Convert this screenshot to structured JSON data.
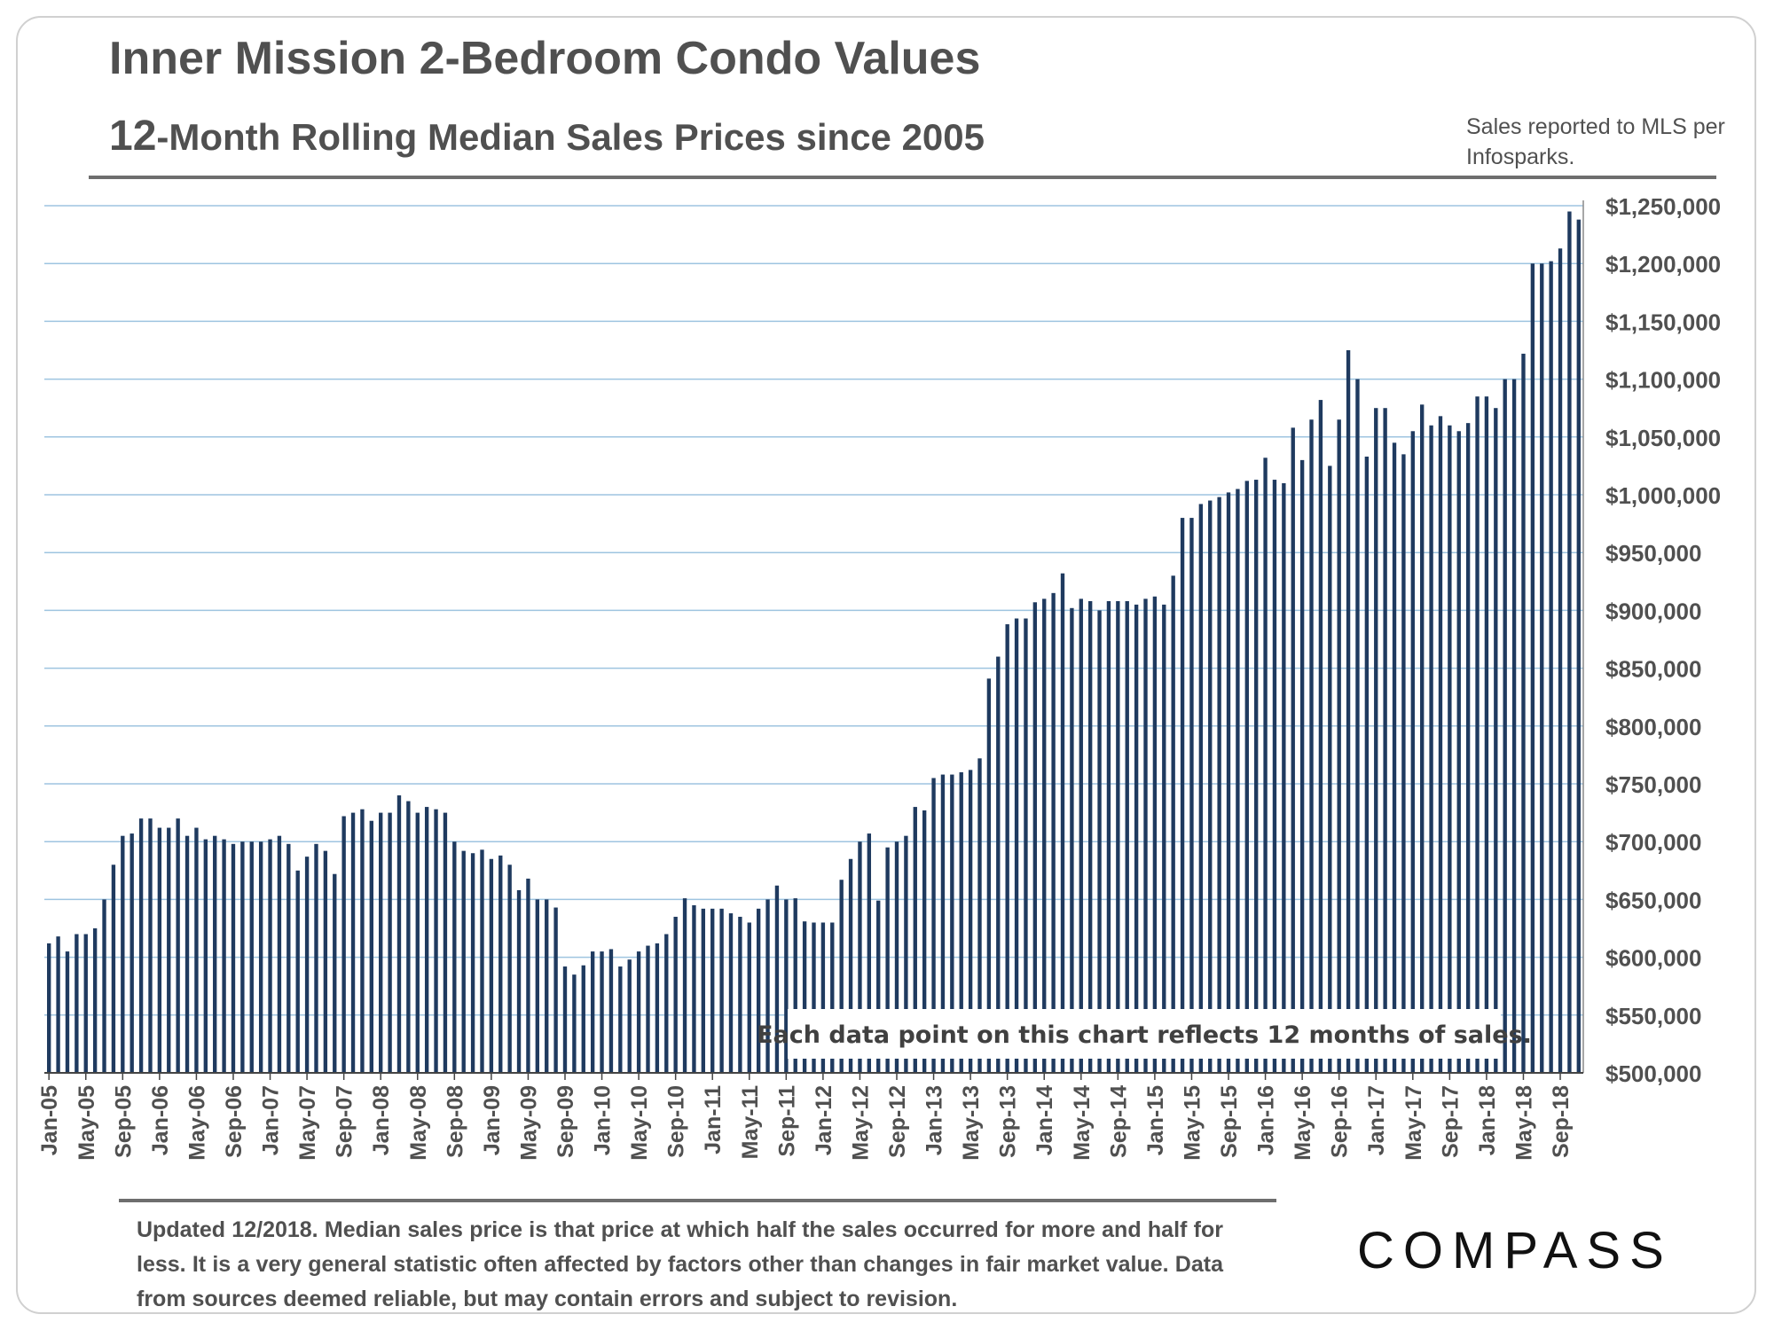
{
  "title": "Inner Mission 2-Bedroom Condo Values",
  "subtitle_number": "12",
  "subtitle_rest": "-Month Rolling Median Sales Prices since 2005",
  "source_note": "Sales reported to MLS per Infosparks.",
  "annotation": "Each data point on this chart reflects 12 months of sales.",
  "footnote": "Updated 12/2018. Median sales price is that price at which half the sales occurred for more and half for less. It is a very general statistic often affected by factors other than changes in fair market value. Data from sources deemed reliable, but may contain errors and subject to revision.",
  "logo_text": "COMPASS",
  "colors": {
    "bar": "#1f3a5f",
    "grid": "#9ec4e0",
    "text": "#505050",
    "rule": "#6e6e6e"
  },
  "chart_data": {
    "type": "bar",
    "title": "Inner Mission 2-Bedroom Condo Values",
    "subtitle": "12-Month Rolling Median Sales Prices since 2005",
    "xlabel": "",
    "ylabel": "",
    "ylim": [
      500000,
      1250000
    ],
    "y_ticks": [
      500000,
      550000,
      600000,
      650000,
      700000,
      750000,
      800000,
      850000,
      900000,
      950000,
      1000000,
      1050000,
      1100000,
      1150000,
      1200000,
      1250000
    ],
    "y_tick_labels": [
      "$500,000",
      "$550,000",
      "$600,000",
      "$650,000",
      "$700,000",
      "$750,000",
      "$800,000",
      "$850,000",
      "$900,000",
      "$950,000",
      "$1,000,000",
      "$1,050,000",
      "$1,100,000",
      "$1,150,000",
      "$1,200,000",
      "$1,250,000"
    ],
    "x_tick_labels": [
      "Jan-05",
      "May-05",
      "Sep-05",
      "Jan-06",
      "May-06",
      "Sep-06",
      "Jan-07",
      "May-07",
      "Sep-07",
      "Jan-08",
      "May-08",
      "Sep-08",
      "Jan-09",
      "May-09",
      "Sep-09",
      "Jan-10",
      "May-10",
      "Sep-10",
      "Jan-11",
      "May-11",
      "Sep-11",
      "Jan-12",
      "May-12",
      "Sep-12",
      "Jan-13",
      "May-13",
      "Sep-13",
      "Jan-14",
      "May-14",
      "Sep-14",
      "Jan-15",
      "May-15",
      "Sep-15",
      "Jan-16",
      "May-16",
      "Sep-16",
      "Jan-17",
      "May-17",
      "Sep-17",
      "Jan-18",
      "May-18",
      "Sep-18"
    ],
    "start_month": "Jan-05",
    "values": [
      612000,
      618000,
      605000,
      620000,
      620000,
      625000,
      650000,
      680000,
      705000,
      707000,
      720000,
      720000,
      712000,
      712000,
      720000,
      705000,
      712000,
      702000,
      705000,
      702000,
      698000,
      700000,
      700000,
      700000,
      702000,
      705000,
      698000,
      675000,
      687000,
      698000,
      692000,
      672000,
      722000,
      725000,
      728000,
      718000,
      725000,
      725000,
      740000,
      735000,
      725000,
      730000,
      728000,
      725000,
      700000,
      692000,
      690000,
      693000,
      685000,
      688000,
      680000,
      658000,
      668000,
      650000,
      650000,
      643000,
      592000,
      585000,
      593000,
      605000,
      605000,
      607000,
      592000,
      598000,
      605000,
      610000,
      612000,
      620000,
      635000,
      651000,
      645000,
      642000,
      642000,
      642000,
      638000,
      635000,
      630000,
      642000,
      650000,
      662000,
      650000,
      651000,
      631000,
      630000,
      630000,
      630000,
      667000,
      685000,
      700000,
      707000,
      649000,
      695000,
      700000,
      705000,
      730000,
      727000,
      755000,
      758000,
      758000,
      760000,
      762000,
      772000,
      841000,
      860000,
      888000,
      893000,
      893000,
      907000,
      910000,
      915000,
      932000,
      902000,
      910000,
      908000,
      900000,
      908000,
      908000,
      908000,
      905000,
      910000,
      912000,
      905000,
      930000,
      980000,
      980000,
      992000,
      995000,
      998000,
      1002000,
      1005000,
      1012000,
      1013000,
      1032000,
      1013000,
      1010000,
      1058000,
      1030000,
      1065000,
      1082000,
      1025000,
      1065000,
      1125000,
      1100000,
      1033000,
      1075000,
      1075000,
      1045000,
      1035000,
      1055000,
      1078000,
      1060000,
      1068000,
      1060000,
      1055000,
      1062000,
      1085000,
      1085000,
      1075000,
      1100000,
      1100000,
      1122000,
      1200000,
      1200000,
      1202000,
      1213000,
      1245000,
      1238000
    ]
  }
}
